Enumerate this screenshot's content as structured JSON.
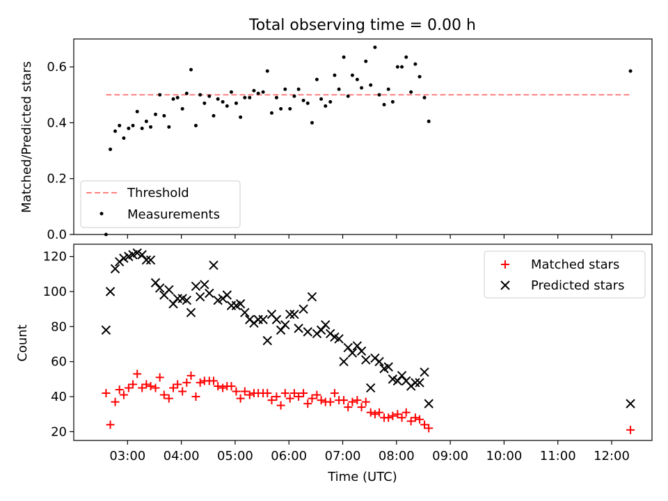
{
  "chart_data": [
    {
      "type": "scatter",
      "title": "Total observing time = 0.00 h",
      "xlabel": "",
      "ylabel": "Matched/Predicted stars",
      "ylim": [
        0,
        0.7
      ],
      "yticks": [
        "0.0",
        "0.2",
        "0.4",
        "0.6"
      ],
      "legend": {
        "placement": "lower-left",
        "entries": [
          "Threshold",
          "Measurements"
        ]
      },
      "threshold": {
        "name": "Threshold",
        "y": 0.5,
        "x_start": 2.6,
        "x_end": 12.35,
        "color": "#ff7f7f"
      },
      "series": [
        {
          "name": "Measurements",
          "color": "#000000",
          "x": [
            2.6,
            2.68,
            2.77,
            2.85,
            2.93,
            3.02,
            3.1,
            3.18,
            3.27,
            3.35,
            3.43,
            3.52,
            3.6,
            3.68,
            3.77,
            3.85,
            3.93,
            4.02,
            4.1,
            4.18,
            4.27,
            4.35,
            4.43,
            4.52,
            4.6,
            4.68,
            4.77,
            4.85,
            4.93,
            5.02,
            5.1,
            5.18,
            5.27,
            5.35,
            5.43,
            5.52,
            5.6,
            5.68,
            5.77,
            5.85,
            5.93,
            6.02,
            6.1,
            6.18,
            6.27,
            6.35,
            6.43,
            6.52,
            6.6,
            6.68,
            6.77,
            6.85,
            6.93,
            7.02,
            7.1,
            7.18,
            7.27,
            7.35,
            7.43,
            7.52,
            7.6,
            7.68,
            7.77,
            7.85,
            7.93,
            8.02,
            8.1,
            8.18,
            8.27,
            8.35,
            8.43,
            8.52,
            8.6,
            12.35
          ],
          "y": [
            0.0,
            0.305,
            0.37,
            0.39,
            0.345,
            0.38,
            0.39,
            0.44,
            0.38,
            0.405,
            0.385,
            0.43,
            0.5,
            0.425,
            0.385,
            0.485,
            0.49,
            0.45,
            0.505,
            0.59,
            0.39,
            0.5,
            0.47,
            0.495,
            0.425,
            0.485,
            0.475,
            0.46,
            0.51,
            0.47,
            0.42,
            0.49,
            0.49,
            0.515,
            0.505,
            0.51,
            0.585,
            0.435,
            0.49,
            0.45,
            0.52,
            0.45,
            0.495,
            0.52,
            0.48,
            0.47,
            0.4,
            0.555,
            0.485,
            0.46,
            0.475,
            0.57,
            0.52,
            0.635,
            0.495,
            0.57,
            0.555,
            0.525,
            0.62,
            0.535,
            0.67,
            0.5,
            0.465,
            0.52,
            0.475,
            0.6,
            0.6,
            0.635,
            0.51,
            0.61,
            0.565,
            0.49,
            0.405,
            0.585
          ]
        }
      ]
    },
    {
      "type": "scatter",
      "title": "",
      "xlabel": "Time (UTC)",
      "ylabel": "Count",
      "xlim_hours": [
        2.0,
        12.75
      ],
      "ylim": [
        15,
        127
      ],
      "xticks": [
        "03:00",
        "04:00",
        "05:00",
        "06:00",
        "07:00",
        "08:00",
        "09:00",
        "10:00",
        "11:00",
        "12:00"
      ],
      "yticks": [
        "20",
        "40",
        "60",
        "80",
        "100",
        "120"
      ],
      "legend": {
        "placement": "top-right",
        "entries": [
          "Matched stars",
          "Predicted stars"
        ]
      },
      "series": [
        {
          "name": "Matched stars",
          "marker": "+",
          "color": "#ff0000",
          "x": [
            2.6,
            2.68,
            2.77,
            2.85,
            2.93,
            3.02,
            3.1,
            3.18,
            3.27,
            3.35,
            3.43,
            3.52,
            3.6,
            3.68,
            3.77,
            3.85,
            3.93,
            4.02,
            4.1,
            4.18,
            4.27,
            4.35,
            4.43,
            4.52,
            4.6,
            4.68,
            4.77,
            4.85,
            4.93,
            5.02,
            5.1,
            5.18,
            5.27,
            5.35,
            5.43,
            5.52,
            5.6,
            5.68,
            5.77,
            5.85,
            5.93,
            6.02,
            6.1,
            6.18,
            6.27,
            6.35,
            6.43,
            6.52,
            6.6,
            6.68,
            6.77,
            6.85,
            6.93,
            7.02,
            7.1,
            7.18,
            7.27,
            7.35,
            7.43,
            7.52,
            7.6,
            7.68,
            7.77,
            7.85,
            7.93,
            8.02,
            8.1,
            8.18,
            8.27,
            8.35,
            8.43,
            8.52,
            8.6,
            12.35
          ],
          "y": [
            42,
            24,
            37,
            44,
            41,
            45,
            47,
            53,
            45,
            47,
            46,
            45,
            51,
            41,
            39,
            45,
            47,
            43,
            48,
            52,
            40,
            48,
            49,
            49,
            49,
            46,
            45,
            46,
            46,
            43,
            39,
            43,
            41,
            42,
            42,
            42,
            42,
            38,
            40,
            35,
            42,
            39,
            42,
            40,
            42,
            36,
            39,
            41,
            38,
            37,
            37,
            42,
            38,
            38,
            34,
            37,
            38,
            34,
            37,
            31,
            30,
            31,
            28,
            28,
            29,
            30,
            28,
            31,
            26,
            28,
            27,
            24,
            22,
            21
          ]
        },
        {
          "name": "Predicted stars",
          "marker": "x",
          "color": "#000000",
          "x": [
            2.6,
            2.68,
            2.77,
            2.85,
            2.93,
            3.02,
            3.1,
            3.18,
            3.27,
            3.35,
            3.43,
            3.52,
            3.6,
            3.68,
            3.77,
            3.85,
            3.93,
            4.02,
            4.1,
            4.18,
            4.27,
            4.35,
            4.43,
            4.52,
            4.6,
            4.68,
            4.77,
            4.85,
            4.93,
            5.02,
            5.1,
            5.18,
            5.27,
            5.35,
            5.43,
            5.52,
            5.6,
            5.68,
            5.77,
            5.85,
            5.93,
            6.02,
            6.1,
            6.18,
            6.27,
            6.35,
            6.43,
            6.52,
            6.6,
            6.68,
            6.77,
            6.85,
            6.93,
            7.02,
            7.1,
            7.18,
            7.27,
            7.35,
            7.43,
            7.52,
            7.6,
            7.68,
            7.77,
            7.85,
            7.93,
            8.02,
            8.1,
            8.18,
            8.27,
            8.35,
            8.43,
            8.52,
            8.6,
            12.35
          ],
          "y": [
            78,
            100,
            113,
            117,
            119,
            120,
            121,
            122,
            121,
            118,
            118,
            105,
            102,
            98,
            101,
            93,
            96,
            96,
            95,
            88,
            103,
            97,
            104,
            99,
            115,
            95,
            96,
            98,
            92,
            92,
            93,
            88,
            84,
            82,
            84,
            84,
            72,
            87,
            84,
            78,
            81,
            87,
            87,
            79,
            90,
            77,
            97,
            76,
            78,
            81,
            76,
            74,
            73,
            60,
            68,
            65,
            69,
            66,
            61,
            45,
            62,
            60,
            56,
            57,
            50,
            49,
            52,
            49,
            46,
            48,
            48,
            54,
            36,
            36
          ]
        }
      ]
    }
  ]
}
